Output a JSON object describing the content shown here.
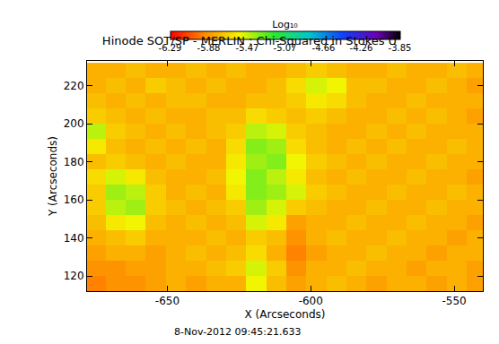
{
  "chart_data": {
    "type": "heatmap",
    "title": "Hinode SOT/SP - MERLIN : Chi-Squared in Stokes U",
    "x_label": "X (Arcseconds)",
    "y_label": "Y (Arcseconds)",
    "annotation": "8-Nov-2012 09:45:21.633",
    "xlim": [
      -678,
      -540
    ],
    "ylim": [
      112,
      233
    ],
    "xticks": [
      -650,
      -600,
      -550
    ],
    "yticks": [
      120,
      140,
      160,
      180,
      200,
      220
    ],
    "x": [
      -675,
      -668,
      -661,
      -654,
      -647,
      -640,
      -633,
      -626,
      -619,
      -612,
      -605,
      -598,
      -591,
      -584,
      -577,
      -570,
      -563,
      -556,
      -549,
      -542
    ],
    "y": [
      116,
      124,
      132,
      140,
      148,
      156,
      164,
      172,
      180,
      188,
      196,
      204,
      212,
      220,
      228
    ],
    "z": [
      [
        -5.95,
        -5.9,
        -5.9,
        -5.85,
        -5.8,
        -5.85,
        -5.8,
        -5.8,
        -5.55,
        -5.75,
        -5.85,
        -5.8,
        -5.75,
        -5.8,
        -5.85,
        -5.8,
        -5.8,
        -5.85,
        -5.8,
        -5.85
      ],
      [
        -5.9,
        -5.9,
        -5.85,
        -5.85,
        -5.8,
        -5.8,
        -5.75,
        -5.7,
        -5.5,
        -5.7,
        -5.9,
        -5.8,
        -5.8,
        -5.75,
        -5.8,
        -5.8,
        -5.85,
        -5.8,
        -5.8,
        -5.85
      ],
      [
        -5.85,
        -5.8,
        -5.8,
        -5.85,
        -5.8,
        -5.75,
        -5.8,
        -5.75,
        -5.65,
        -5.8,
        -5.95,
        -5.85,
        -5.8,
        -5.8,
        -5.75,
        -5.8,
        -5.8,
        -5.85,
        -5.8,
        -5.8
      ],
      [
        -5.8,
        -5.75,
        -5.7,
        -5.8,
        -5.8,
        -5.8,
        -5.75,
        -5.8,
        -5.7,
        -5.75,
        -5.9,
        -5.8,
        -5.75,
        -5.8,
        -5.8,
        -5.75,
        -5.8,
        -5.8,
        -5.85,
        -5.8
      ],
      [
        -5.75,
        -5.6,
        -5.55,
        -5.75,
        -5.8,
        -5.75,
        -5.8,
        -5.75,
        -5.5,
        -5.6,
        -5.85,
        -5.8,
        -5.8,
        -5.75,
        -5.8,
        -5.8,
        -5.75,
        -5.8,
        -5.8,
        -5.85
      ],
      [
        -5.7,
        -5.45,
        -5.4,
        -5.7,
        -5.75,
        -5.8,
        -5.75,
        -5.7,
        -5.4,
        -5.5,
        -5.7,
        -5.75,
        -5.8,
        -5.8,
        -5.75,
        -5.8,
        -5.8,
        -5.75,
        -5.8,
        -5.8
      ],
      [
        -5.7,
        -5.4,
        -5.45,
        -5.7,
        -5.8,
        -5.75,
        -5.8,
        -5.6,
        -5.35,
        -5.4,
        -5.5,
        -5.7,
        -5.75,
        -5.8,
        -5.8,
        -5.75,
        -5.8,
        -5.8,
        -5.75,
        -5.8
      ],
      [
        -5.65,
        -5.5,
        -5.6,
        -5.75,
        -5.8,
        -5.8,
        -5.75,
        -5.55,
        -5.35,
        -5.45,
        -5.6,
        -5.75,
        -5.8,
        -5.75,
        -5.8,
        -5.8,
        -5.75,
        -5.8,
        -5.8,
        -5.85
      ],
      [
        -5.75,
        -5.7,
        -5.75,
        -5.8,
        -5.75,
        -5.8,
        -5.8,
        -5.6,
        -5.4,
        -5.35,
        -5.55,
        -5.7,
        -5.75,
        -5.8,
        -5.75,
        -5.8,
        -5.8,
        -5.75,
        -5.8,
        -5.8
      ],
      [
        -5.6,
        -5.75,
        -5.8,
        -5.75,
        -5.8,
        -5.75,
        -5.8,
        -5.65,
        -5.35,
        -5.4,
        -5.65,
        -5.75,
        -5.8,
        -5.75,
        -5.8,
        -5.75,
        -5.8,
        -5.8,
        -5.75,
        -5.8
      ],
      [
        -5.45,
        -5.7,
        -5.75,
        -5.8,
        -5.75,
        -5.8,
        -5.75,
        -5.7,
        -5.45,
        -5.5,
        -5.7,
        -5.75,
        -5.8,
        -5.8,
        -5.75,
        -5.8,
        -5.75,
        -5.8,
        -5.8,
        -5.8
      ],
      [
        -5.7,
        -5.75,
        -5.8,
        -5.75,
        -5.8,
        -5.8,
        -5.75,
        -5.75,
        -5.65,
        -5.7,
        -5.75,
        -5.7,
        -5.75,
        -5.8,
        -5.8,
        -5.75,
        -5.8,
        -5.75,
        -5.8,
        -5.85
      ],
      [
        -5.75,
        -5.8,
        -5.75,
        -5.8,
        -5.75,
        -5.75,
        -5.8,
        -5.8,
        -5.75,
        -5.75,
        -5.7,
        -5.6,
        -5.65,
        -5.75,
        -5.8,
        -5.8,
        -5.75,
        -5.8,
        -5.8,
        -5.8
      ],
      [
        -5.8,
        -5.75,
        -5.8,
        -5.7,
        -5.75,
        -5.8,
        -5.75,
        -5.8,
        -5.8,
        -5.75,
        -5.65,
        -5.5,
        -5.55,
        -5.75,
        -5.75,
        -5.8,
        -5.8,
        -5.75,
        -5.8,
        -5.85
      ],
      [
        -5.8,
        -5.8,
        -5.75,
        -5.8,
        -5.8,
        -5.75,
        -5.8,
        -5.75,
        -5.8,
        -5.8,
        -5.75,
        -5.7,
        -5.75,
        -5.8,
        -5.8,
        -5.75,
        -5.8,
        -5.8,
        -5.75,
        -5.8
      ]
    ],
    "colorbar": {
      "title": "Log₁₀",
      "range": [
        -6.29,
        -3.85
      ],
      "ticks": [
        -6.29,
        -5.88,
        -5.47,
        -5.07,
        -4.66,
        -4.26,
        -3.85
      ]
    }
  }
}
